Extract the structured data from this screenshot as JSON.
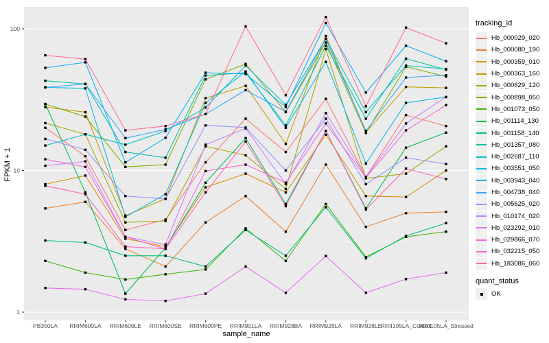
{
  "chart_data": {
    "type": "line",
    "title": "",
    "xlabel": "sample_name",
    "ylabel": "FPKM + 1",
    "y_scale": "log10",
    "y_ticks": [
      1,
      10,
      100
    ],
    "y_minor_ticks": [
      3.162,
      31.62
    ],
    "ylim": [
      0.88,
      143
    ],
    "grid": "on",
    "panel_color": "#EBEBEB",
    "gridline_color": "#FFFFFF",
    "point_color": "#000000",
    "point_shape": "square",
    "legend_position": "right",
    "categories": [
      "PB350LA",
      "RRIM600LA",
      "RRIM600LE",
      "RRIM600SE",
      "RRIM600PE",
      "RRIM901LA",
      "RRIM928BA",
      "RRIM928LA",
      "RRIM928LE",
      "RRII105LA_Control",
      "RRII105LA_Stressed"
    ],
    "series": [
      {
        "name": "Hb_000029_020",
        "color": "#F8766D",
        "values": [
          20,
          12.6,
          3.8,
          4.5,
          11.4,
          23.2,
          13.5,
          32,
          9.0,
          24.6,
          20.6
        ]
      },
      {
        "name": "Hb_000080_190",
        "color": "#EA8331",
        "values": [
          5.4,
          6.0,
          2.8,
          2.1,
          4.3,
          6.6,
          3.7,
          11,
          4.0,
          5.0,
          5.1
        ]
      },
      {
        "name": "Hb_000359_010",
        "color": "#D89000",
        "values": [
          8.0,
          9.2,
          3.3,
          2.9,
          7.6,
          9.5,
          7.0,
          17.9,
          6.6,
          6.5,
          10
        ]
      },
      {
        "name": "Hb_000363_160",
        "color": "#C09B00",
        "values": [
          28,
          25.8,
          4.8,
          6.3,
          32.4,
          39.6,
          15.4,
          89,
          18.6,
          38.9,
          38.3
        ]
      },
      {
        "name": "Hb_000629_120",
        "color": "#A3A500",
        "values": [
          21.6,
          18,
          4.3,
          4.4,
          14.8,
          12.8,
          7.4,
          72,
          8.8,
          9.5,
          14.8
        ]
      },
      {
        "name": "Hb_000898_050",
        "color": "#7CAE00",
        "values": [
          29.4,
          24,
          10.6,
          11,
          43.9,
          56.5,
          25.8,
          80,
          18.4,
          54,
          46
        ]
      },
      {
        "name": "Hb_001073_050",
        "color": "#39B600",
        "values": [
          2.3,
          1.9,
          1.7,
          1.85,
          2.0,
          3.9,
          2.3,
          5.8,
          2.45,
          3.4,
          3.7
        ]
      },
      {
        "name": "Hb_001114_130",
        "color": "#00BB4E",
        "values": [
          29.5,
          7.0,
          1.35,
          2.85,
          8.2,
          16.9,
          5.8,
          19,
          5.4,
          14.5,
          18.5
        ]
      },
      {
        "name": "Hb_001158_140",
        "color": "#00BF7D",
        "values": [
          3.2,
          3.1,
          2.5,
          2.5,
          2.1,
          3.8,
          2.5,
          5.5,
          2.4,
          3.45,
          4.25
        ]
      },
      {
        "name": "Hb_001357_080",
        "color": "#00C1A3",
        "values": [
          43,
          40.8,
          13.5,
          12.3,
          46.8,
          49,
          20.8,
          76,
          23.2,
          61.6,
          51.5
        ]
      },
      {
        "name": "Hb_002687_110",
        "color": "#00BFC4",
        "values": [
          15,
          18,
          15.2,
          19,
          27.8,
          55,
          29,
          85,
          25.8,
          55,
          52
        ]
      },
      {
        "name": "Hb_003551_050",
        "color": "#00BAE0",
        "values": [
          38.6,
          38,
          4.7,
          6.8,
          30,
          50,
          20,
          58.5,
          11.2,
          30,
          33
        ]
      },
      {
        "name": "Hb_003943_040",
        "color": "#00B0F6",
        "values": [
          53,
          58,
          11.4,
          17,
          49,
          48,
          28,
          110,
          35.5,
          76,
          59
        ]
      },
      {
        "name": "Hb_004738_040",
        "color": "#35A2FF",
        "values": [
          38.6,
          40.8,
          16.9,
          19.5,
          25,
          36.9,
          26,
          85,
          19,
          45.3,
          47
        ]
      },
      {
        "name": "Hb_005625_020",
        "color": "#9590FF",
        "values": [
          16.7,
          14,
          6.6,
          6.3,
          20.8,
          20.1,
          10,
          23.2,
          8,
          12.3,
          11.1
        ]
      },
      {
        "name": "Hb_010174_020",
        "color": "#C77CFF",
        "values": [
          10.8,
          11.6,
          3.4,
          3.0,
          15.2,
          19.8,
          8,
          25.4,
          9.0,
          21.5,
          33
        ]
      },
      {
        "name": "Hb_023292_010",
        "color": "#E76BF3",
        "values": [
          1.48,
          1.45,
          1.23,
          1.2,
          1.35,
          2.1,
          1.37,
          2.49,
          1.37,
          1.71,
          1.9
        ]
      },
      {
        "name": "Hb_029866_070",
        "color": "#FA62DB",
        "values": [
          12,
          10.6,
          3.4,
          2.8,
          9.9,
          11,
          8.2,
          21.5,
          8.9,
          19.2,
          28.9
        ]
      },
      {
        "name": "Hb_032215_050",
        "color": "#FF62BC",
        "values": [
          7.8,
          6.8,
          2.9,
          2.8,
          7.0,
          16,
          5.6,
          19,
          5.3,
          10.3,
          8.7
        ]
      },
      {
        "name": "Hb_183086_060",
        "color": "#FF6A98",
        "values": [
          65,
          61,
          19.2,
          20.6,
          25,
          104,
          34,
          121,
          28.4,
          102,
          79
        ]
      }
    ],
    "legend": {
      "tracking_title": "tracking_id",
      "quant_title": "quant_status",
      "quant_ok_label": "OK"
    }
  }
}
